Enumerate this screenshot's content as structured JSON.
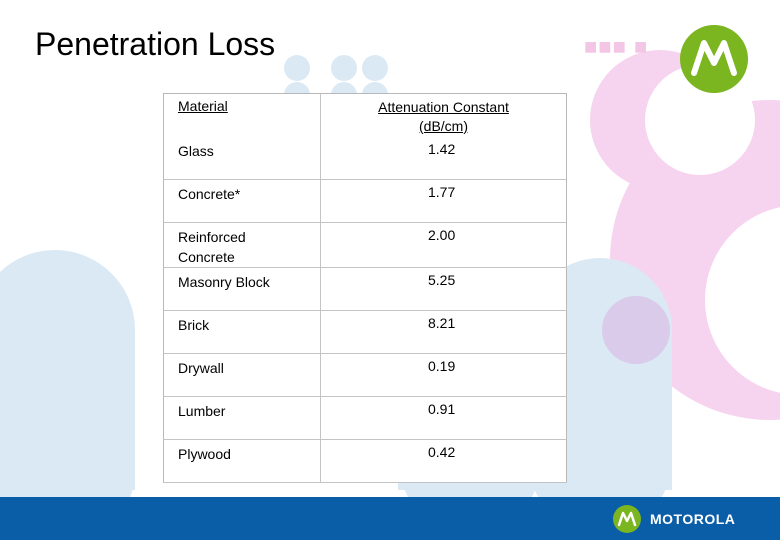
{
  "slide": {
    "title": "Penetration Loss"
  },
  "table": {
    "headers": {
      "material": "Material",
      "attenuation_line1": "Attenuation Constant",
      "attenuation_line2": "(dB/cm)"
    },
    "rows": [
      {
        "material": "Glass",
        "value": "1.42"
      },
      {
        "material": "Concrete*",
        "value": "1.77"
      },
      {
        "material": "Reinforced Concrete",
        "value": "2.00"
      },
      {
        "material": "Masonry Block",
        "value": "5.25"
      },
      {
        "material": "Brick",
        "value": "8.21"
      },
      {
        "material": "Drywall",
        "value": "0.19"
      },
      {
        "material": "Lumber",
        "value": "0.91"
      },
      {
        "material": "Plywood",
        "value": "0.42"
      }
    ]
  },
  "footer": {
    "brand": "MOTOROLA"
  },
  "icons": {
    "top_logo": "motorola-logo-icon",
    "footer_logo": "motorola-logo-icon"
  },
  "colors": {
    "footer_bar": "#0a5ea8",
    "logo_green": "#7bb51f",
    "deco_blue": "#dbe9f5",
    "deco_pink": "#f6d3ee"
  }
}
